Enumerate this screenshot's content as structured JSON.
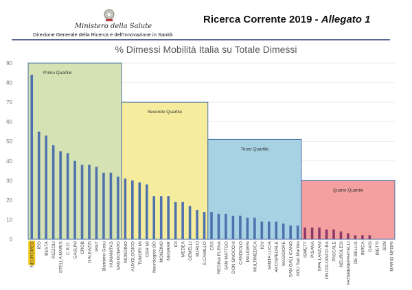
{
  "header": {
    "ministry": "Ministero della Salute",
    "direzione": "Direzione Generale della Ricerca e dell'Innovazione in Sanità",
    "doc_title_main": "Ricerca Corrente 2019 - ",
    "doc_title_italic": "Allegato 1"
  },
  "colors": {
    "bar": "#4f72ad",
    "bar_q4": "#8b3a68",
    "q1": "#d4e2b4",
    "q2": "#f5ec9e",
    "q3": "#a6d2e4",
    "q4": "#f4a0a0",
    "border": "#4a72a6",
    "highlight": "#f2c419"
  },
  "chart_data": {
    "type": "bar",
    "title": "% Dimessi Mobilità Italia su Totale Dimessi",
    "xlabel": "",
    "ylabel": "",
    "ylim": [
      0,
      90
    ],
    "yticks": [
      0,
      10,
      20,
      30,
      40,
      50,
      60,
      70,
      80,
      90
    ],
    "grid": true,
    "highlighted_category": "NEUROMED",
    "categories": [
      "NEUROMED",
      "IEO",
      "BESTA",
      "RIZZOLI",
      "STELLA MARIS",
      "C.R.O.",
      "GASLINI",
      "CROB",
      "GALEAZZI",
      "IRST",
      "Bambino Gesu",
      "HUMANITAS",
      "SAN DONATO",
      "MONDINO",
      "AUXOLOGICO",
      "TUMORI MI",
      "OSR MI",
      "Neurologico BO",
      "MONZINO",
      "NEGRAR",
      "IDI",
      "MEDEA",
      "GEMELLI",
      "BURLO",
      "S.CAMILLO",
      "CSS",
      "REGINA ELENA",
      "SAN MATTEO",
      "DON GNOCCHI",
      "CANDIOLO",
      "MAUGERI",
      "MULTIMEDICA",
      "IOV",
      "SANTA LUCIA",
      "ARCISPEDALE",
      "MAGGIORE",
      "SAN GALLICANO",
      "AOU San Martino",
      "ISMETT",
      "PISANA",
      "SPALLANZANI",
      "ONCOLOGICO BA",
      "PASCALE",
      "NEUROLESI",
      "FATEBENEFRATELLI",
      "DE BELLIS",
      "INRCA",
      "OASI",
      "BIETTI",
      "SDN",
      "MARIO NEGRI"
    ],
    "values": [
      84,
      55,
      53,
      48,
      45,
      44,
      40,
      38,
      38,
      37,
      34,
      34,
      32,
      31,
      30,
      29,
      28,
      22,
      22,
      22,
      19,
      19,
      17,
      15,
      14,
      14,
      13,
      13,
      12,
      12,
      11,
      11,
      9,
      9,
      9,
      8,
      7,
      7,
      6,
      6,
      6,
      5,
      5,
      4,
      3,
      2,
      2,
      2,
      0,
      0,
      0
    ],
    "quartiles": [
      {
        "label": "Primo Quartile",
        "start_index": 0,
        "end_index": 12,
        "max": 90
      },
      {
        "label": "Secondo Quartile",
        "start_index": 13,
        "end_index": 24,
        "max": 70
      },
      {
        "label": "Terzo Quartile",
        "start_index": 25,
        "end_index": 37,
        "max": 51
      },
      {
        "label": "Quarto Quartile",
        "start_index": 38,
        "end_index": 50,
        "max": 30
      }
    ]
  }
}
